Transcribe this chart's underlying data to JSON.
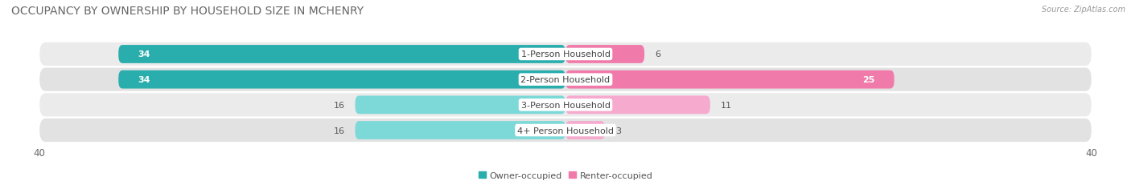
{
  "title": "OCCUPANCY BY OWNERSHIP BY HOUSEHOLD SIZE IN MCHENRY",
  "source": "Source: ZipAtlas.com",
  "categories": [
    "1-Person Household",
    "2-Person Household",
    "3-Person Household",
    "4+ Person Household"
  ],
  "owner_values": [
    34,
    34,
    16,
    16
  ],
  "renter_values": [
    6,
    25,
    11,
    3
  ],
  "owner_color": "#2AADAD",
  "renter_color": "#F07BAA",
  "owner_color_light": "#7DD8D8",
  "renter_color_light": "#F5AACE",
  "row_bg_color_dark": "#E2E2E2",
  "row_bg_color_light": "#EBEBEB",
  "axis_max": 40,
  "legend_owner": "Owner-occupied",
  "legend_renter": "Renter-occupied",
  "title_fontsize": 10,
  "label_fontsize": 8,
  "value_fontsize": 8,
  "tick_fontsize": 8.5,
  "source_fontsize": 7
}
